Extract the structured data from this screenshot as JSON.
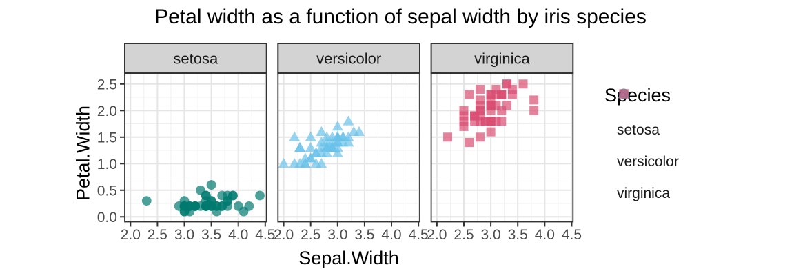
{
  "chart_data": {
    "type": "scatter",
    "title": "Petal width as a function of sepal width by iris species",
    "xlabel": "Sepal.Width",
    "ylabel": "Petal.Width",
    "legend": {
      "title": "Species",
      "position": "right"
    },
    "axes": {
      "x_tick_labels": [
        "2.0",
        "2.5",
        "3.0",
        "3.5",
        "4.0",
        "4.5"
      ],
      "x_tick_values": [
        2.0,
        2.5,
        3.0,
        3.5,
        4.0,
        4.5
      ],
      "y_tick_labels": [
        "0.0",
        "0.5",
        "1.0",
        "1.5",
        "2.0",
        "2.5"
      ],
      "y_tick_values": [
        0.0,
        0.5,
        1.0,
        1.5,
        2.0,
        2.5
      ],
      "x_domain": [
        1.894,
        4.524
      ],
      "y_domain": [
        -0.094,
        2.705
      ],
      "x_minor": [
        2.25,
        2.75,
        3.25,
        3.75,
        4.25
      ],
      "y_minor": [
        0.25,
        0.75,
        1.25,
        1.75,
        2.25
      ],
      "grid": true
    },
    "style": {
      "point_alpha": 0.7,
      "strip_bg": "#D3D3D3",
      "strip_text_color": "#1a1a1a",
      "border_color": "#333333",
      "grid_major": "#E5E5E5",
      "grid_minor": "#F0F0F0",
      "tick_color": "#333333",
      "tick_label_color": "#4D4D4D"
    },
    "facets": [
      {
        "label": "setosa",
        "shape": "circle",
        "color": "#00796F",
        "points": [
          [
            3.5,
            0.2
          ],
          [
            3.0,
            0.2
          ],
          [
            3.2,
            0.2
          ],
          [
            3.1,
            0.2
          ],
          [
            3.6,
            0.2
          ],
          [
            3.9,
            0.4
          ],
          [
            3.4,
            0.3
          ],
          [
            3.4,
            0.2
          ],
          [
            2.9,
            0.2
          ],
          [
            3.1,
            0.1
          ],
          [
            3.7,
            0.2
          ],
          [
            3.4,
            0.2
          ],
          [
            3.0,
            0.1
          ],
          [
            3.0,
            0.1
          ],
          [
            4.0,
            0.2
          ],
          [
            4.4,
            0.4
          ],
          [
            3.9,
            0.4
          ],
          [
            3.5,
            0.3
          ],
          [
            3.8,
            0.3
          ],
          [
            3.8,
            0.3
          ],
          [
            3.4,
            0.2
          ],
          [
            3.7,
            0.4
          ],
          [
            3.6,
            0.2
          ],
          [
            3.3,
            0.5
          ],
          [
            3.4,
            0.2
          ],
          [
            3.0,
            0.2
          ],
          [
            3.4,
            0.4
          ],
          [
            3.5,
            0.2
          ],
          [
            3.4,
            0.2
          ],
          [
            3.2,
            0.2
          ],
          [
            3.1,
            0.2
          ],
          [
            3.4,
            0.4
          ],
          [
            4.1,
            0.1
          ],
          [
            4.2,
            0.2
          ],
          [
            3.1,
            0.2
          ],
          [
            3.2,
            0.2
          ],
          [
            3.5,
            0.2
          ],
          [
            3.6,
            0.1
          ],
          [
            3.0,
            0.2
          ],
          [
            3.4,
            0.2
          ],
          [
            3.5,
            0.3
          ],
          [
            2.3,
            0.3
          ],
          [
            3.2,
            0.2
          ],
          [
            3.5,
            0.6
          ],
          [
            3.8,
            0.4
          ],
          [
            3.0,
            0.3
          ],
          [
            3.8,
            0.2
          ],
          [
            3.2,
            0.2
          ],
          [
            3.7,
            0.2
          ],
          [
            3.3,
            0.2
          ]
        ]
      },
      {
        "label": "versicolor",
        "shape": "triangle",
        "color": "#69C2EA",
        "points": [
          [
            3.2,
            1.4
          ],
          [
            3.2,
            1.5
          ],
          [
            3.1,
            1.5
          ],
          [
            2.3,
            1.3
          ],
          [
            2.8,
            1.5
          ],
          [
            2.8,
            1.3
          ],
          [
            3.3,
            1.6
          ],
          [
            2.4,
            1.0
          ],
          [
            2.9,
            1.3
          ],
          [
            2.7,
            1.4
          ],
          [
            2.0,
            1.0
          ],
          [
            3.0,
            1.5
          ],
          [
            2.2,
            1.0
          ],
          [
            2.9,
            1.4
          ],
          [
            2.9,
            1.3
          ],
          [
            3.1,
            1.4
          ],
          [
            3.0,
            1.5
          ],
          [
            2.7,
            1.0
          ],
          [
            2.2,
            1.5
          ],
          [
            2.5,
            1.1
          ],
          [
            3.2,
            1.8
          ],
          [
            2.8,
            1.3
          ],
          [
            2.5,
            1.5
          ],
          [
            2.8,
            1.2
          ],
          [
            2.9,
            1.3
          ],
          [
            3.0,
            1.4
          ],
          [
            2.8,
            1.4
          ],
          [
            3.0,
            1.7
          ],
          [
            2.9,
            1.5
          ],
          [
            2.6,
            1.0
          ],
          [
            2.4,
            1.1
          ],
          [
            2.4,
            1.0
          ],
          [
            2.7,
            1.2
          ],
          [
            2.7,
            1.6
          ],
          [
            3.0,
            1.5
          ],
          [
            3.4,
            1.6
          ],
          [
            3.1,
            1.5
          ],
          [
            2.3,
            1.3
          ],
          [
            3.0,
            1.3
          ],
          [
            2.5,
            1.3
          ],
          [
            2.6,
            1.2
          ],
          [
            3.0,
            1.4
          ],
          [
            2.6,
            1.2
          ],
          [
            2.3,
            1.0
          ],
          [
            2.7,
            1.3
          ],
          [
            3.0,
            1.2
          ],
          [
            2.9,
            1.3
          ],
          [
            2.9,
            1.3
          ],
          [
            2.5,
            1.1
          ],
          [
            2.8,
            1.3
          ]
        ]
      },
      {
        "label": "virginica",
        "shape": "square",
        "color": "#DA4E74",
        "points": [
          [
            3.3,
            2.5
          ],
          [
            2.7,
            1.9
          ],
          [
            3.0,
            2.1
          ],
          [
            2.9,
            1.8
          ],
          [
            3.0,
            2.2
          ],
          [
            3.0,
            2.1
          ],
          [
            2.5,
            1.7
          ],
          [
            2.9,
            1.8
          ],
          [
            2.5,
            1.8
          ],
          [
            3.6,
            2.5
          ],
          [
            3.2,
            2.0
          ],
          [
            2.7,
            1.9
          ],
          [
            3.0,
            2.1
          ],
          [
            2.5,
            2.0
          ],
          [
            2.8,
            2.4
          ],
          [
            3.2,
            2.3
          ],
          [
            3.0,
            1.8
          ],
          [
            3.8,
            2.2
          ],
          [
            2.6,
            2.3
          ],
          [
            2.2,
            1.5
          ],
          [
            3.2,
            2.3
          ],
          [
            2.8,
            2.0
          ],
          [
            2.8,
            2.0
          ],
          [
            2.7,
            1.8
          ],
          [
            3.3,
            2.1
          ],
          [
            3.2,
            1.8
          ],
          [
            2.8,
            1.8
          ],
          [
            3.0,
            1.8
          ],
          [
            2.8,
            2.1
          ],
          [
            3.0,
            1.6
          ],
          [
            2.8,
            1.9
          ],
          [
            3.8,
            2.0
          ],
          [
            2.8,
            2.2
          ],
          [
            2.8,
            1.5
          ],
          [
            2.6,
            1.4
          ],
          [
            3.0,
            2.3
          ],
          [
            3.4,
            2.4
          ],
          [
            3.1,
            1.8
          ],
          [
            3.0,
            1.8
          ],
          [
            3.1,
            2.1
          ],
          [
            3.1,
            2.4
          ],
          [
            3.1,
            2.3
          ],
          [
            2.7,
            1.9
          ],
          [
            3.2,
            2.3
          ],
          [
            3.3,
            2.5
          ],
          [
            3.0,
            2.3
          ],
          [
            2.5,
            1.9
          ],
          [
            3.0,
            2.0
          ],
          [
            3.4,
            2.3
          ],
          [
            3.0,
            1.8
          ]
        ]
      }
    ]
  }
}
